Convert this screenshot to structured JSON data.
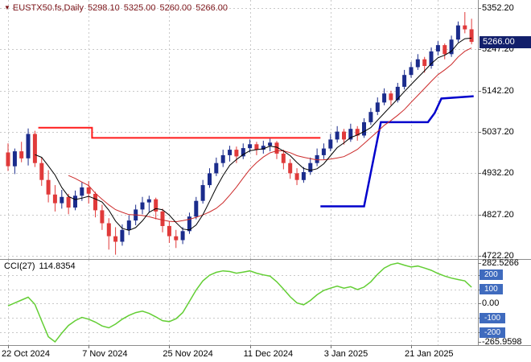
{
  "header": {
    "symbol": "EUSTX50.fs,Daily",
    "open": "5298.10",
    "high": "5325.00",
    "low": "5260.00",
    "close": "5266.00",
    "text_color": "#7C1419"
  },
  "icons": {
    "symbol_marker": "▼"
  },
  "price_axis": {
    "items": [
      {
        "text": "5352.20",
        "value": 5352.2
      },
      {
        "text": "5247.20",
        "value": 5247.2
      },
      {
        "text": "5142.20",
        "value": 5142.2
      },
      {
        "text": "5037.20",
        "value": 5037.2
      },
      {
        "text": "4932.20",
        "value": 4932.2
      },
      {
        "text": "4827.20",
        "value": 4827.2
      },
      {
        "text": "4722.20",
        "value": 4722.2
      }
    ],
    "badge": {
      "text": "5266.00",
      "value": 5266.0,
      "bg": "#121F6B",
      "fg": "#FFFFFF"
    }
  },
  "indicator_panel": {
    "label": "CCI(27)",
    "value": "114.8354",
    "badge_bg": "#3F6BBE",
    "badge_fg": "#FFFFFF",
    "axis": [
      {
        "text": "282.5266",
        "value": 282.5266,
        "badge": false
      },
      {
        "text": "200",
        "value": 200,
        "badge": true
      },
      {
        "text": "100",
        "value": 100,
        "badge": true
      },
      {
        "text": "0.00",
        "value": 0,
        "badge": false
      },
      {
        "text": "-100",
        "value": -100,
        "badge": true
      },
      {
        "text": "-200",
        "value": -200,
        "badge": true
      },
      {
        "text": "-265.9598",
        "value": -265.9598,
        "badge": false
      }
    ]
  },
  "time_axis": {
    "items": [
      {
        "text": "22 Oct 2024",
        "index": 0
      },
      {
        "text": "7 Nov 2024",
        "index": 12
      },
      {
        "text": "25 Nov 2024",
        "index": 24
      },
      {
        "text": "11 Dec 2024",
        "index": 36
      },
      {
        "text": "3 Jan 2025",
        "index": 48
      },
      {
        "text": "21 Jan 2025",
        "index": 60
      }
    ]
  },
  "chart_data": {
    "type": "candlestick",
    "title": "EUSTX50.fs Daily with CCI(27)",
    "symbol": "EUSTX50.fs",
    "timeframe": "Daily",
    "last_bar": {
      "open": 5298.1,
      "high": 5325.0,
      "low": 5260.0,
      "close": 5266.0
    },
    "price_scale": {
      "max": 5352.2,
      "min": 4722.2
    },
    "up_color": "#1B2C8C",
    "down_color": "#E03A3A",
    "grid_color": "#C9C9C9",
    "separator_color": "#8C8C8C",
    "grid_indices": [
      0,
      12,
      24,
      36,
      48,
      60,
      64
    ],
    "candles": [
      [
        4985,
        5008,
        4938,
        4950
      ],
      [
        4950,
        4995,
        4930,
        4988
      ],
      [
        4988,
        5012,
        4960,
        4970
      ],
      [
        4970,
        5046,
        4952,
        5032
      ],
      [
        5032,
        5040,
        4948,
        4958
      ],
      [
        4958,
        4972,
        4900,
        4915
      ],
      [
        4915,
        4940,
        4858,
        4878
      ],
      [
        4878,
        4902,
        4835,
        4856
      ],
      [
        4856,
        4890,
        4842,
        4872
      ],
      [
        4872,
        4880,
        4828,
        4845
      ],
      [
        4845,
        4888,
        4838,
        4875
      ],
      [
        4875,
        4910,
        4862,
        4896
      ],
      [
        4896,
        4912,
        4855,
        4880
      ],
      [
        4880,
        4885,
        4820,
        4838
      ],
      [
        4838,
        4852,
        4788,
        4805
      ],
      [
        4805,
        4818,
        4738,
        4772
      ],
      [
        4772,
        4795,
        4725,
        4758
      ],
      [
        4758,
        4802,
        4748,
        4788
      ],
      [
        4788,
        4825,
        4775,
        4812
      ],
      [
        4812,
        4852,
        4800,
        4840
      ],
      [
        4840,
        4872,
        4828,
        4858
      ],
      [
        4858,
        4875,
        4832,
        4866
      ],
      [
        4866,
        4870,
        4815,
        4835
      ],
      [
        4835,
        4842,
        4782,
        4798
      ],
      [
        4798,
        4810,
        4755,
        4772
      ],
      [
        4772,
        4788,
        4742,
        4762
      ],
      [
        4762,
        4795,
        4752,
        4785
      ],
      [
        4785,
        4832,
        4778,
        4822
      ],
      [
        4822,
        4872,
        4815,
        4862
      ],
      [
        4862,
        4915,
        4855,
        4902
      ],
      [
        4902,
        4945,
        4895,
        4932
      ],
      [
        4932,
        4972,
        4925,
        4958
      ],
      [
        4958,
        4992,
        4948,
        4978
      ],
      [
        4978,
        5002,
        4962,
        4992
      ],
      [
        4992,
        5000,
        4958,
        4975
      ],
      [
        4975,
        5008,
        4968,
        4996
      ],
      [
        4996,
        5018,
        4985,
        5006
      ],
      [
        5006,
        5012,
        4978,
        4992
      ],
      [
        4992,
        5015,
        4982,
        5002
      ],
      [
        5002,
        5020,
        4988,
        5010
      ],
      [
        5010,
        5014,
        4968,
        4982
      ],
      [
        4982,
        4992,
        4942,
        4958
      ],
      [
        4958,
        4968,
        4918,
        4932
      ],
      [
        4932,
        4945,
        4902,
        4915
      ],
      [
        4915,
        4948,
        4908,
        4935
      ],
      [
        4935,
        4972,
        4928,
        4958
      ],
      [
        4958,
        4995,
        4950,
        4978
      ],
      [
        4978,
        5008,
        4968,
        4995
      ],
      [
        4995,
        5032,
        4988,
        5018
      ],
      [
        5018,
        5052,
        5010,
        5038
      ],
      [
        5038,
        5045,
        5005,
        5018
      ],
      [
        5018,
        5058,
        5012,
        5045
      ],
      [
        5045,
        5052,
        5015,
        5028
      ],
      [
        5028,
        5072,
        5022,
        5062
      ],
      [
        5062,
        5098,
        5055,
        5088
      ],
      [
        5088,
        5125,
        5080,
        5112
      ],
      [
        5112,
        5148,
        5105,
        5135
      ],
      [
        5135,
        5142,
        5105,
        5118
      ],
      [
        5118,
        5162,
        5112,
        5152
      ],
      [
        5152,
        5195,
        5145,
        5182
      ],
      [
        5182,
        5215,
        5175,
        5202
      ],
      [
        5202,
        5235,
        5195,
        5222
      ],
      [
        5222,
        5228,
        5188,
        5205
      ],
      [
        5205,
        5252,
        5198,
        5242
      ],
      [
        5242,
        5268,
        5232,
        5258
      ],
      [
        5258,
        5262,
        5222,
        5235
      ],
      [
        5235,
        5282,
        5228,
        5272
      ],
      [
        5272,
        5318,
        5265,
        5308
      ],
      [
        5308,
        5342,
        5288,
        5298
      ],
      [
        5298.1,
        5325,
        5260,
        5266
      ]
    ],
    "ma_fast": {
      "period": 5,
      "color": "#000000"
    },
    "ma_slow": {
      "period": 10,
      "color": "#CC2A2A"
    },
    "stop_lines": {
      "red": {
        "color": "#FF1A1A",
        "width": 2,
        "points": [
          [
            4.5,
            5048
          ],
          [
            12.5,
            5048
          ],
          [
            12.5,
            5022
          ],
          [
            46.5,
            5022
          ]
        ]
      },
      "blue": {
        "color": "#0000CC",
        "width": 2.5,
        "points": [
          [
            46.5,
            4848
          ],
          [
            53,
            4848
          ],
          [
            55.5,
            5062
          ],
          [
            62.5,
            5062
          ],
          [
            63.5,
            5085
          ],
          [
            64.5,
            5122
          ],
          [
            69.3,
            5128
          ]
        ]
      }
    },
    "cci": {
      "name": "CCI",
      "period": 27,
      "color": "#63CE34",
      "last_value": 114.8354,
      "scale_max": 282.5266,
      "scale_min": -265.9598,
      "levels": [
        200,
        100,
        0,
        -100,
        -200
      ],
      "values": [
        -15,
        5,
        25,
        45,
        -5,
        -120,
        -230,
        -265.96,
        -205,
        -152,
        -118,
        -95,
        -108,
        -128,
        -155,
        -168,
        -142,
        -108,
        -82,
        -62,
        -52,
        -68,
        -92,
        -118,
        -125,
        -105,
        -62,
        15,
        95,
        158,
        198,
        218,
        228,
        224,
        212,
        220,
        228,
        212,
        200,
        192,
        152,
        102,
        48,
        5,
        -8,
        22,
        62,
        92,
        108,
        122,
        108,
        118,
        98,
        115,
        152,
        205,
        248,
        272,
        282.5266,
        268,
        255,
        262,
        248,
        232,
        210,
        192,
        178,
        168,
        158,
        114.8354
      ]
    }
  }
}
